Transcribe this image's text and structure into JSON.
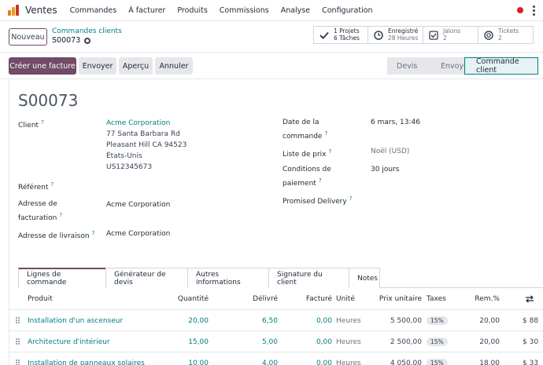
{
  "app": {
    "name": "Ventes",
    "menu": [
      "Commandes",
      "À facturer",
      "Produits",
      "Commissions",
      "Analyse",
      "Configuration"
    ]
  },
  "control": {
    "new_label": "Nouveau",
    "breadcrumb_parent": "Commandes clients",
    "breadcrumb_current": "S00073"
  },
  "stats": [
    {
      "icon": "puzzle-icon",
      "line1": "1 Projets",
      "line2": "6 Tâches"
    },
    {
      "icon": "clock-icon",
      "line1": "Enregistré",
      "line2": "28 Heures"
    },
    {
      "icon": "check-icon",
      "line1": "Jalons",
      "line2": "2"
    },
    {
      "icon": "lifebuoy-icon",
      "line1": "Tickets",
      "line2": "2"
    }
  ],
  "actions": {
    "create_invoice": "Créer une facture",
    "send": "Envoyer",
    "preview": "Aperçu",
    "cancel": "Annuler"
  },
  "status": {
    "steps": [
      "Devis",
      "Envoyé",
      "Commande client"
    ],
    "active": "Commande client"
  },
  "form": {
    "title": "S00073",
    "client_label": "Client",
    "client_value": "Acme Corporation",
    "client_address": [
      "77 Santa Barbara Rd",
      "Pleasant Hill CA 94523",
      "États-Unis",
      "US12345673"
    ],
    "referent_label": "Référent",
    "billing_label_1": "Adresse de",
    "billing_label_2": "facturation",
    "billing_value": "Acme Corporation",
    "delivery_label": "Adresse de livraison",
    "delivery_value": "Acme Corporation",
    "date_label_1": "Date de la",
    "date_label_2": "commande",
    "date_value": "6 mars, 13:46",
    "pricelist_label": "Liste de prix",
    "pricelist_value": "Noël (USD)",
    "terms_label_1": "Conditions de",
    "terms_label_2": "paiement",
    "terms_value": "30 jours",
    "promised_label": "Promised Delivery"
  },
  "tabs": [
    "Lignes de commande",
    "Générateur de devis",
    "Autres informations",
    "Signature du client",
    "Notes"
  ],
  "table": {
    "headers": {
      "product": "Produit",
      "quantity": "Quantité",
      "delivered": "Délivré",
      "invoiced": "Facturé",
      "unit": "Unité",
      "unit_price": "Prix unitaire",
      "taxes": "Taxes",
      "discount": "Rem.%"
    },
    "rows": [
      {
        "product": "Installation d'un ascenseur",
        "quantity": "20,00",
        "delivered": "6,50",
        "invoiced": "0,00",
        "unit": "Heures",
        "unit_price": "5 500,00",
        "tax": "15%",
        "discount": "20,00",
        "subtotal": "$ 88"
      },
      {
        "product": "Architecture d'intérieur",
        "quantity": "15,00",
        "delivered": "5,00",
        "invoiced": "0,00",
        "unit": "Heures",
        "unit_price": "2 500,00",
        "tax": "15%",
        "discount": "20,00",
        "subtotal": "$ 30"
      },
      {
        "product": "Installation de panneaux solaires",
        "quantity": "10,00",
        "delivered": "4,00",
        "invoiced": "0,00",
        "unit": "Heures",
        "unit_price": "4 050,00",
        "tax": "15%",
        "discount": "18,00",
        "subtotal": "$ 33"
      }
    ]
  }
}
